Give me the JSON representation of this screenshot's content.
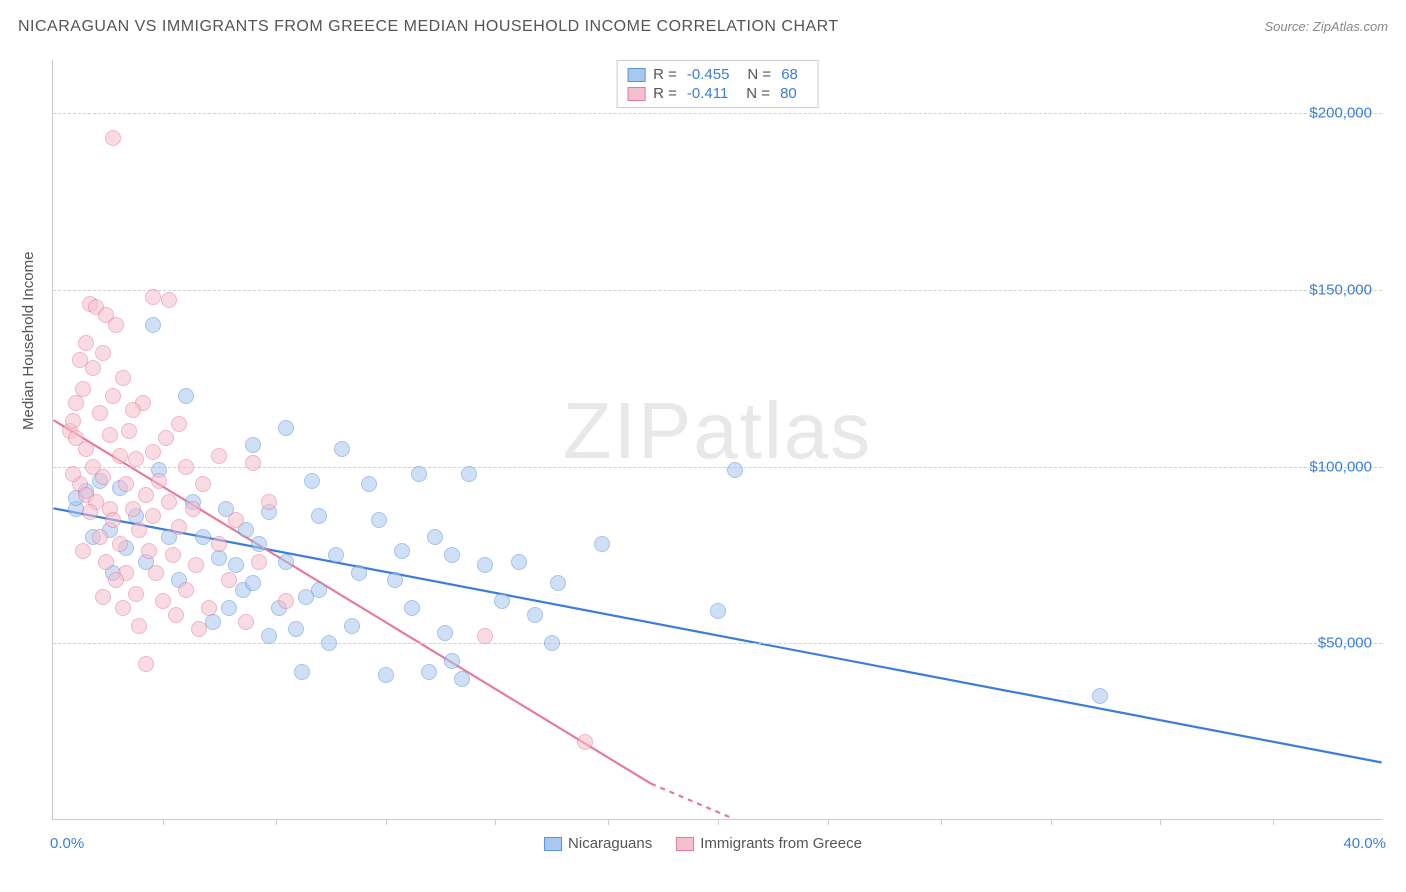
{
  "title": "NICARAGUAN VS IMMIGRANTS FROM GREECE MEDIAN HOUSEHOLD INCOME CORRELATION CHART",
  "source": "Source: ZipAtlas.com",
  "watermark_bold": "ZIP",
  "watermark_light": "atlas",
  "y_axis_title": "Median Household Income",
  "chart": {
    "type": "scatter",
    "xlim": [
      0,
      40
    ],
    "ylim": [
      0,
      215000
    ],
    "x_min_label": "0.0%",
    "x_max_label": "40.0%",
    "x_tick_positions": [
      3.3,
      6.7,
      10,
      13.3,
      16.7,
      20,
      23.3,
      26.7,
      30,
      33.3,
      36.7
    ],
    "y_grid": [
      50000,
      100000,
      150000,
      200000
    ],
    "y_tick_labels": [
      "$50,000",
      "$100,000",
      "$150,000",
      "$200,000"
    ],
    "background_color": "#ffffff",
    "grid_color": "#d0d0d0",
    "axis_color": "#cccccc",
    "tick_label_color": "#3b7dd8",
    "point_radius": 8,
    "point_opacity": 0.55,
    "series": [
      {
        "name": "Nicaraguans",
        "color_fill": "#a9c8ef",
        "color_stroke": "#5b94db",
        "line_color": "#3b7dd8",
        "R": "-0.455",
        "N": "68",
        "regression": {
          "x1": 0,
          "y1": 88000,
          "x2": 40,
          "y2": 16000
        },
        "points": [
          [
            0.7,
            88000
          ],
          [
            0.7,
            91000
          ],
          [
            1.0,
            93000
          ],
          [
            1.2,
            80000
          ],
          [
            1.4,
            96000
          ],
          [
            1.7,
            82000
          ],
          [
            2.0,
            94000
          ],
          [
            2.2,
            77000
          ],
          [
            2.5,
            86000
          ],
          [
            3.0,
            140000
          ],
          [
            3.2,
            99000
          ],
          [
            3.5,
            80000
          ],
          [
            4.0,
            120000
          ],
          [
            4.2,
            90000
          ],
          [
            4.5,
            80000
          ],
          [
            5.0,
            74000
          ],
          [
            5.2,
            88000
          ],
          [
            5.5,
            72000
          ],
          [
            5.7,
            65000
          ],
          [
            5.8,
            82000
          ],
          [
            6.0,
            106000
          ],
          [
            6.0,
            67000
          ],
          [
            6.2,
            78000
          ],
          [
            6.5,
            87000
          ],
          [
            6.8,
            60000
          ],
          [
            7.0,
            111000
          ],
          [
            7.0,
            73000
          ],
          [
            7.3,
            54000
          ],
          [
            7.5,
            42000
          ],
          [
            7.8,
            96000
          ],
          [
            8.0,
            86000
          ],
          [
            8.0,
            65000
          ],
          [
            8.5,
            75000
          ],
          [
            8.7,
            105000
          ],
          [
            9.0,
            55000
          ],
          [
            9.5,
            95000
          ],
          [
            9.8,
            85000
          ],
          [
            10.0,
            41000
          ],
          [
            10.3,
            68000
          ],
          [
            10.5,
            76000
          ],
          [
            11.0,
            98000
          ],
          [
            11.3,
            42000
          ],
          [
            11.5,
            80000
          ],
          [
            12.0,
            45000
          ],
          [
            12.0,
            75000
          ],
          [
            12.3,
            40000
          ],
          [
            12.5,
            98000
          ],
          [
            13.0,
            72000
          ],
          [
            13.5,
            62000
          ],
          [
            14.0,
            73000
          ],
          [
            14.5,
            58000
          ],
          [
            15.0,
            50000
          ],
          [
            15.2,
            67000
          ],
          [
            16.5,
            78000
          ],
          [
            20.0,
            59000
          ],
          [
            20.5,
            99000
          ],
          [
            31.5,
            35000
          ],
          [
            5.3,
            60000
          ],
          [
            4.8,
            56000
          ],
          [
            3.8,
            68000
          ],
          [
            2.8,
            73000
          ],
          [
            1.8,
            70000
          ],
          [
            6.5,
            52000
          ],
          [
            8.3,
            50000
          ],
          [
            11.8,
            53000
          ],
          [
            9.2,
            70000
          ],
          [
            10.8,
            60000
          ],
          [
            7.6,
            63000
          ]
        ]
      },
      {
        "name": "Immigrants from Greece",
        "color_fill": "#f5c0cd",
        "color_stroke": "#e77a9a",
        "line_color": "#e77a9a",
        "R": "-0.411",
        "N": "80",
        "regression": {
          "x1": 0,
          "y1": 113000,
          "x2": 18.0,
          "y2": 10000
        },
        "regression_dash_ext": {
          "x1": 18.0,
          "y1": 10000,
          "x2": 20.5,
          "y2": 0
        },
        "points": [
          [
            0.5,
            110000
          ],
          [
            0.6,
            113000
          ],
          [
            0.7,
            118000
          ],
          [
            0.7,
            108000
          ],
          [
            0.8,
            95000
          ],
          [
            0.9,
            122000
          ],
          [
            1.0,
            105000
          ],
          [
            1.0,
            135000
          ],
          [
            1.0,
            92000
          ],
          [
            1.1,
            146000
          ],
          [
            1.2,
            100000
          ],
          [
            1.2,
            128000
          ],
          [
            1.3,
            145000
          ],
          [
            1.3,
            90000
          ],
          [
            1.4,
            115000
          ],
          [
            1.5,
            132000
          ],
          [
            1.5,
            97000
          ],
          [
            1.6,
            143000
          ],
          [
            1.7,
            88000
          ],
          [
            1.7,
            109000
          ],
          [
            1.8,
            120000
          ],
          [
            1.8,
            85000
          ],
          [
            1.8,
            193000
          ],
          [
            1.9,
            140000
          ],
          [
            2.0,
            103000
          ],
          [
            2.0,
            78000
          ],
          [
            2.1,
            125000
          ],
          [
            2.2,
            95000
          ],
          [
            2.2,
            70000
          ],
          [
            2.3,
            110000
          ],
          [
            2.4,
            88000
          ],
          [
            2.5,
            64000
          ],
          [
            2.5,
            102000
          ],
          [
            2.6,
            82000
          ],
          [
            2.7,
            118000
          ],
          [
            2.8,
            92000
          ],
          [
            2.8,
            44000
          ],
          [
            2.9,
            76000
          ],
          [
            3.0,
            148000
          ],
          [
            3.0,
            104000
          ],
          [
            3.0,
            86000
          ],
          [
            3.1,
            70000
          ],
          [
            3.2,
            96000
          ],
          [
            3.3,
            62000
          ],
          [
            3.4,
            108000
          ],
          [
            3.5,
            90000
          ],
          [
            3.5,
            147000
          ],
          [
            3.6,
            75000
          ],
          [
            3.8,
            83000
          ],
          [
            3.8,
            112000
          ],
          [
            4.0,
            65000
          ],
          [
            4.0,
            100000
          ],
          [
            4.2,
            88000
          ],
          [
            4.3,
            72000
          ],
          [
            4.5,
            95000
          ],
          [
            4.7,
            60000
          ],
          [
            5.0,
            78000
          ],
          [
            5.0,
            103000
          ],
          [
            5.3,
            68000
          ],
          [
            5.5,
            85000
          ],
          [
            5.8,
            56000
          ],
          [
            6.0,
            101000
          ],
          [
            6.2,
            73000
          ],
          [
            6.5,
            90000
          ],
          [
            7.0,
            62000
          ],
          [
            13.0,
            52000
          ],
          [
            16.0,
            22000
          ],
          [
            1.4,
            80000
          ],
          [
            1.6,
            73000
          ],
          [
            2.1,
            60000
          ],
          [
            0.8,
            130000
          ],
          [
            0.6,
            98000
          ],
          [
            1.1,
            87000
          ],
          [
            2.4,
            116000
          ],
          [
            3.7,
            58000
          ],
          [
            4.4,
            54000
          ],
          [
            1.9,
            68000
          ],
          [
            2.6,
            55000
          ],
          [
            0.9,
            76000
          ],
          [
            1.5,
            63000
          ]
        ]
      }
    ]
  },
  "legend_bottom": [
    {
      "label": "Nicaraguans",
      "fill": "#a9c8ef",
      "stroke": "#5b94db"
    },
    {
      "label": "Immigrants from Greece",
      "fill": "#f5c0cd",
      "stroke": "#e77a9a"
    }
  ]
}
